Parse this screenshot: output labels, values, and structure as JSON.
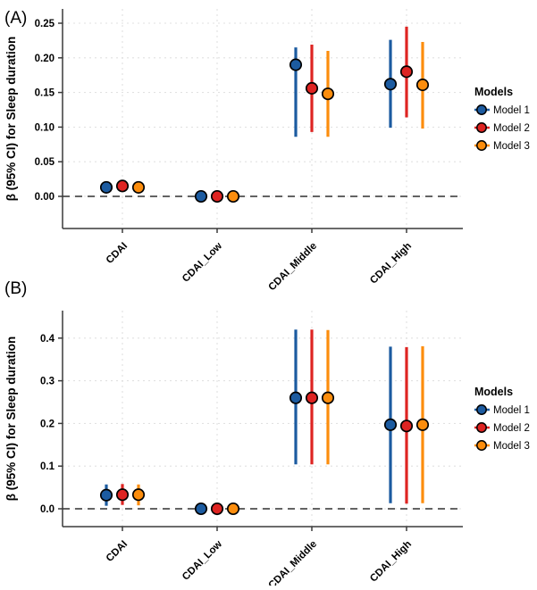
{
  "figure_title": "",
  "chart_data": [
    {
      "panel_label": "(A)",
      "type": "pointrange",
      "ylabel": "β (95% CI) for Sleep duration",
      "categories": [
        "CDAI",
        "CDAI_Low",
        "CDAI_Middle",
        "CDAI_High"
      ],
      "yticks": [
        0.0,
        0.05,
        0.1,
        0.15,
        0.2,
        0.25
      ],
      "ytick_labels": [
        "0.00",
        "0.05",
        "0.10",
        "0.15",
        "0.20",
        "0.25"
      ],
      "ylim": [
        -0.046,
        0.271
      ],
      "grid": "dashed-major",
      "zero_line": true,
      "legend_position": "right",
      "legend": {
        "title": "Models",
        "entries": [
          {
            "name": "Model 1",
            "color": "#1C5BA0"
          },
          {
            "name": "Model 2",
            "color": "#DE2422"
          },
          {
            "name": "Model 3",
            "color": "#FC8D0D"
          }
        ]
      },
      "series": [
        {
          "name": "Model 1",
          "color": "#1C5BA0",
          "values": [
            {
              "y": 0.013,
              "lo": 0.006,
              "hi": 0.021
            },
            {
              "y": 0.0,
              "lo": -0.005,
              "hi": 0.005
            },
            {
              "y": 0.19,
              "lo": 0.086,
              "hi": 0.215
            },
            {
              "y": 0.162,
              "lo": 0.099,
              "hi": 0.226
            }
          ]
        },
        {
          "name": "Model 2",
          "color": "#DE2422",
          "values": [
            {
              "y": 0.015,
              "lo": 0.008,
              "hi": 0.023
            },
            {
              "y": 0.0,
              "lo": -0.005,
              "hi": 0.005
            },
            {
              "y": 0.156,
              "lo": 0.093,
              "hi": 0.219
            },
            {
              "y": 0.18,
              "lo": 0.114,
              "hi": 0.245
            }
          ]
        },
        {
          "name": "Model 3",
          "color": "#FC8D0D",
          "values": [
            {
              "y": 0.013,
              "lo": 0.006,
              "hi": 0.021
            },
            {
              "y": 0.0,
              "lo": -0.005,
              "hi": 0.005
            },
            {
              "y": 0.148,
              "lo": 0.086,
              "hi": 0.21
            },
            {
              "y": 0.161,
              "lo": 0.098,
              "hi": 0.223
            }
          ]
        }
      ]
    },
    {
      "panel_label": "(B)",
      "type": "pointrange",
      "ylabel": "β (95% CI) for Sleep duration",
      "categories": [
        "CDAI",
        "CDAI_Low",
        "CDAI_Middle",
        "CDAI_High"
      ],
      "yticks": [
        0.0,
        0.1,
        0.2,
        0.3,
        0.4
      ],
      "ytick_labels": [
        "0.0",
        "0.1",
        "0.2",
        "0.3",
        "0.4"
      ],
      "ylim": [
        -0.042,
        0.464
      ],
      "grid": "dashed-major",
      "zero_line": true,
      "legend_position": "right",
      "legend": {
        "title": "Models",
        "entries": [
          {
            "name": "Model 1",
            "color": "#1C5BA0"
          },
          {
            "name": "Model 2",
            "color": "#DE2422"
          },
          {
            "name": "Model 3",
            "color": "#FC8D0D"
          }
        ]
      },
      "series": [
        {
          "name": "Model 1",
          "color": "#1C5BA0",
          "values": [
            {
              "y": 0.032,
              "lo": 0.007,
              "hi": 0.057
            },
            {
              "y": 0.0,
              "lo": -0.012,
              "hi": 0.012
            },
            {
              "y": 0.26,
              "lo": 0.104,
              "hi": 0.42
            },
            {
              "y": 0.197,
              "lo": 0.013,
              "hi": 0.38
            }
          ]
        },
        {
          "name": "Model 2",
          "color": "#DE2422",
          "values": [
            {
              "y": 0.033,
              "lo": 0.009,
              "hi": 0.058
            },
            {
              "y": 0.0,
              "lo": -0.012,
              "hi": 0.012
            },
            {
              "y": 0.26,
              "lo": 0.104,
              "hi": 0.42
            },
            {
              "y": 0.194,
              "lo": 0.012,
              "hi": 0.379
            }
          ]
        },
        {
          "name": "Model 3",
          "color": "#FC8D0D",
          "values": [
            {
              "y": 0.033,
              "lo": 0.008,
              "hi": 0.057
            },
            {
              "y": 0.0,
              "lo": -0.012,
              "hi": 0.012
            },
            {
              "y": 0.26,
              "lo": 0.104,
              "hi": 0.419
            },
            {
              "y": 0.197,
              "lo": 0.013,
              "hi": 0.381
            }
          ]
        }
      ]
    }
  ],
  "style_colors": {
    "model1": "#1C5BA0",
    "model2": "#DE2422",
    "model3": "#FC8D0D",
    "point_outline": "#000000",
    "zero_line": "#4D4D4D",
    "gridline": "#E1E1E1",
    "axis": "#3A3A3A"
  }
}
